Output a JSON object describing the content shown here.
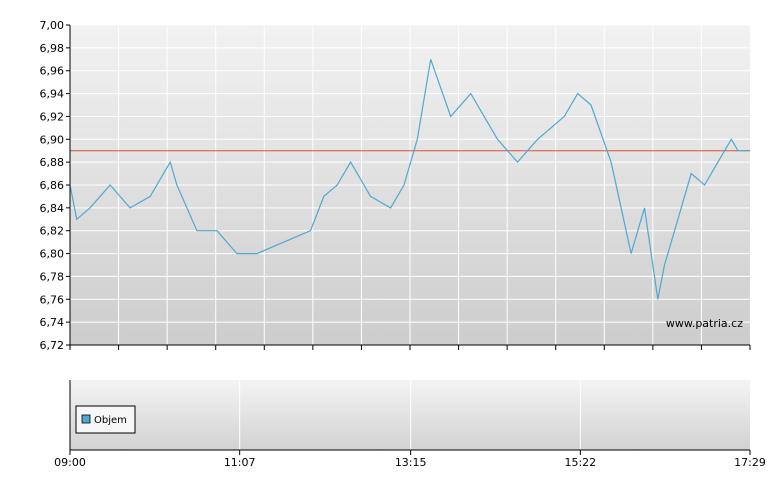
{
  "watermark": "www.patria.cz",
  "colors": {
    "line": "#4fa8d1",
    "reference": "#d9503a",
    "grid": "#ffffff",
    "axis": "#000000"
  },
  "chart_data": [
    {
      "type": "line",
      "title": "",
      "xlabel": "",
      "ylabel": "",
      "ylim": [
        6.72,
        7.0
      ],
      "yticks": [
        "7,00",
        "6,98",
        "6,96",
        "6,94",
        "6,92",
        "6,90",
        "6,88",
        "6,86",
        "6,84",
        "6,82",
        "6,80",
        "6,78",
        "6,76",
        "6,74",
        "6,72"
      ],
      "reference_line": 6.89,
      "grid": true,
      "series": [
        {
          "x": [
            "09:00",
            "09:05",
            "09:15",
            "09:30",
            "09:45",
            "10:00",
            "10:15",
            "10:20",
            "10:35",
            "10:50",
            "11:05",
            "11:20",
            "11:40",
            "12:00",
            "12:10",
            "12:20",
            "12:30",
            "12:45",
            "13:00",
            "13:10",
            "13:20",
            "13:30",
            "13:45",
            "14:00",
            "14:10",
            "14:20",
            "14:35",
            "14:50",
            "15:00",
            "15:10",
            "15:20",
            "15:30",
            "15:45",
            "16:00",
            "16:10",
            "16:20",
            "16:25",
            "16:35",
            "16:45",
            "16:55",
            "17:05",
            "17:15",
            "17:20",
            "17:29"
          ],
          "y": [
            6.86,
            6.83,
            6.84,
            6.86,
            6.84,
            6.85,
            6.88,
            6.86,
            6.82,
            6.82,
            6.8,
            6.8,
            6.81,
            6.82,
            6.85,
            6.86,
            6.88,
            6.85,
            6.84,
            6.86,
            6.9,
            6.97,
            6.92,
            6.94,
            6.92,
            6.9,
            6.88,
            6.9,
            6.91,
            6.92,
            6.94,
            6.93,
            6.88,
            6.8,
            6.84,
            6.76,
            6.79,
            6.83,
            6.87,
            6.86,
            6.88,
            6.9,
            6.89,
            6.89
          ]
        }
      ]
    },
    {
      "type": "bar",
      "title": "",
      "legend": [
        "Objem"
      ],
      "series": [
        {
          "name": "Objem",
          "values": []
        }
      ],
      "xticks": [
        "09:00",
        "11:07",
        "13:15",
        "15:22",
        "17:29"
      ]
    }
  ]
}
